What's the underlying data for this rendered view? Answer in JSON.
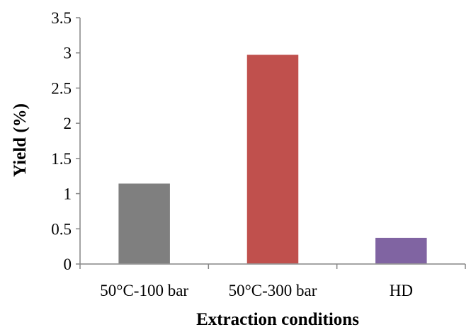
{
  "chart_data": {
    "type": "bar",
    "categories": [
      "50°C-100 bar",
      "50°C-300 bar",
      "HD"
    ],
    "values": [
      1.15,
      2.98,
      0.38
    ],
    "colors": [
      "#7f7f7f",
      "#c0504d",
      "#8064a2"
    ],
    "xlabel": "Extraction conditions",
    "ylabel": "Yield (%)",
    "ylim": [
      0,
      3.5
    ],
    "yticks": [
      "0",
      "0.5",
      "1",
      "1.5",
      "2",
      "2.5",
      "3",
      "3.5"
    ],
    "grid": false,
    "legend": "none"
  }
}
